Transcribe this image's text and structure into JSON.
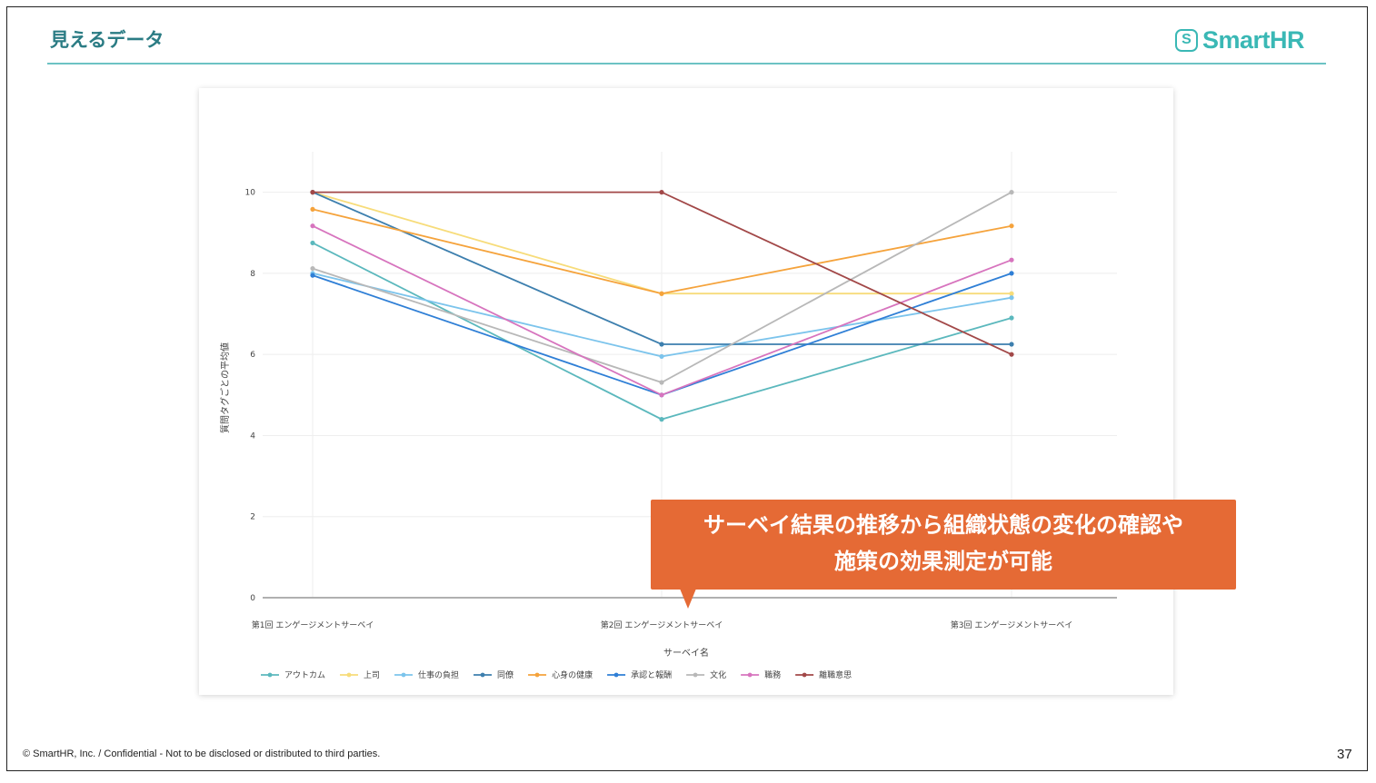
{
  "slide": {
    "title": "見えるデータ",
    "logo_text": "SmartHR",
    "logo_mark": "S",
    "footer": "© SmartHR, Inc. / Confidential - Not to be disclosed or distributed to third parties.",
    "page_number": "37"
  },
  "callout": {
    "line1": "サーベイ結果の推移から組織状態の変化の確認や",
    "line2": "施策の効果測定が可能",
    "color": "#e56a35"
  },
  "chart_data": {
    "type": "line",
    "title": "",
    "xlabel": "サーベイ名",
    "ylabel": "質問タグごとの平均値",
    "categories": [
      "第1回 エンゲージメントサーベイ",
      "第2回 エンゲージメントサーベイ",
      "第3回 エンゲージメントサーベイ"
    ],
    "ylim": [
      0,
      11
    ],
    "yticks": [
      0,
      2,
      4,
      6,
      8,
      10
    ],
    "grid": true,
    "legend_position": "bottom",
    "series": [
      {
        "name": "アウトカム",
        "color": "#5bb8bd",
        "values": [
          8.75,
          4.4,
          6.9
        ]
      },
      {
        "name": "上司",
        "color": "#f7dc7a",
        "values": [
          10.0,
          7.5,
          7.5
        ]
      },
      {
        "name": "仕事の負担",
        "color": "#7cc4ec",
        "values": [
          8.0,
          5.95,
          7.4
        ]
      },
      {
        "name": "同僚",
        "color": "#3d7fae",
        "values": [
          10.0,
          6.25,
          6.25
        ]
      },
      {
        "name": "心身の健康",
        "color": "#f5a33c",
        "values": [
          9.58,
          7.5,
          9.17
        ]
      },
      {
        "name": "承認と報酬",
        "color": "#2f7fd6",
        "values": [
          7.95,
          5.0,
          8.0
        ]
      },
      {
        "name": "文化",
        "color": "#b8b8b8",
        "values": [
          8.12,
          5.31,
          10.0
        ]
      },
      {
        "name": "職務",
        "color": "#d774be",
        "values": [
          9.17,
          5.0,
          8.33
        ]
      },
      {
        "name": "離職意思",
        "color": "#a24848",
        "values": [
          10.0,
          10.0,
          6.0
        ]
      }
    ]
  }
}
